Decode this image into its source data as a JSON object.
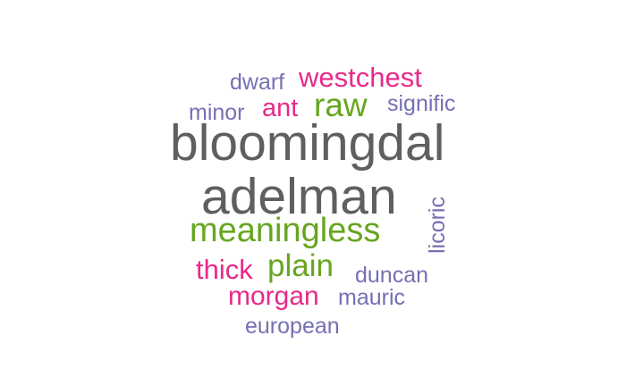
{
  "colors": {
    "gray": "#5f5f5f",
    "green": "#66a61e",
    "magenta": "#e7298a",
    "purple": "#7570b3"
  },
  "words": [
    {
      "text": "bloomingdal",
      "color": "#5f5f5f"
    },
    {
      "text": "adelman",
      "color": "#5f5f5f"
    },
    {
      "text": "meaningless",
      "color": "#66a61e"
    },
    {
      "text": "westchest",
      "color": "#e7298a"
    },
    {
      "text": "raw",
      "color": "#66a61e"
    },
    {
      "text": "plain",
      "color": "#66a61e"
    },
    {
      "text": "morgan",
      "color": "#e7298a"
    },
    {
      "text": "ant",
      "color": "#e7298a"
    },
    {
      "text": "thick",
      "color": "#e7298a"
    },
    {
      "text": "dwarf",
      "color": "#7570b3"
    },
    {
      "text": "minor",
      "color": "#7570b3"
    },
    {
      "text": "signific",
      "color": "#7570b3"
    },
    {
      "text": "licoric",
      "color": "#7570b3"
    },
    {
      "text": "duncan",
      "color": "#7570b3"
    },
    {
      "text": "mauric",
      "color": "#7570b3"
    },
    {
      "text": "european",
      "color": "#7570b3"
    }
  ]
}
